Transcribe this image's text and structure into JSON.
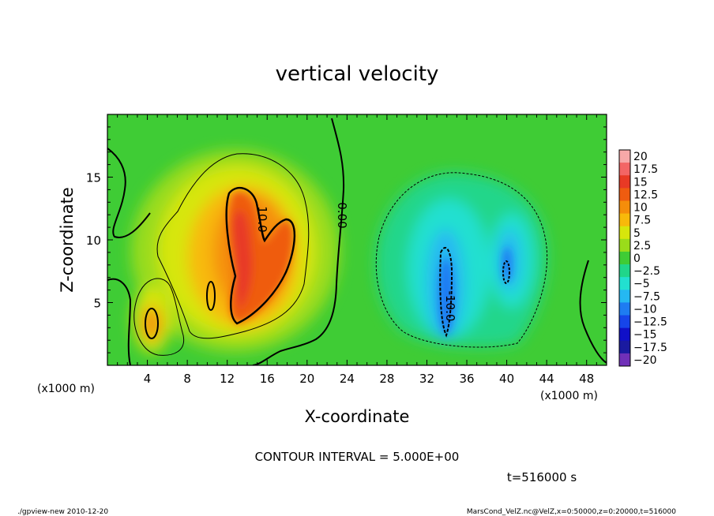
{
  "chart_data": {
    "type": "heatmap",
    "title": "vertical velocity",
    "xlabel": "X-coordinate",
    "ylabel": "Z-coordinate",
    "x_unit_label": "(x1000 m)",
    "z_unit_label": "(x1000 m)",
    "xlim": [
      0,
      50
    ],
    "ylim": [
      0,
      20
    ],
    "x_ticks": [
      4,
      8,
      12,
      16,
      20,
      24,
      28,
      32,
      36,
      40,
      44,
      48
    ],
    "y_ticks": [
      5,
      10,
      15
    ],
    "colorbar": {
      "labels": [
        "20",
        "17.5",
        "15",
        "12.5",
        "10",
        "7.5",
        "5",
        "2.5",
        "0",
        "−2.5",
        "−5",
        "−7.5",
        "−10",
        "−12.5",
        "−15",
        "−17.5",
        "−20"
      ],
      "colors": [
        "#f7a8a8",
        "#f36565",
        "#e83a25",
        "#ef5c10",
        "#f58d0a",
        "#f8b90a",
        "#d7e60c",
        "#9adc1a",
        "#3fcc35",
        "#20d68a",
        "#22e0d0",
        "#25b8f2",
        "#1e7cf2",
        "#1645ea",
        "#1010c8",
        "#1a1aa0",
        "#7030b8"
      ]
    },
    "contour_labels": [
      "10.0",
      "0.00",
      "-10.0"
    ],
    "contour_interval_text": "CONTOUR INTERVAL = 5.000E+00",
    "time_text": "t=516000 s"
  },
  "footer": {
    "left": "./gpview-new  2010-12-20",
    "right": "MarsCond_VelZ.nc@VelZ,x=0:50000,z=0:20000,t=516000"
  }
}
